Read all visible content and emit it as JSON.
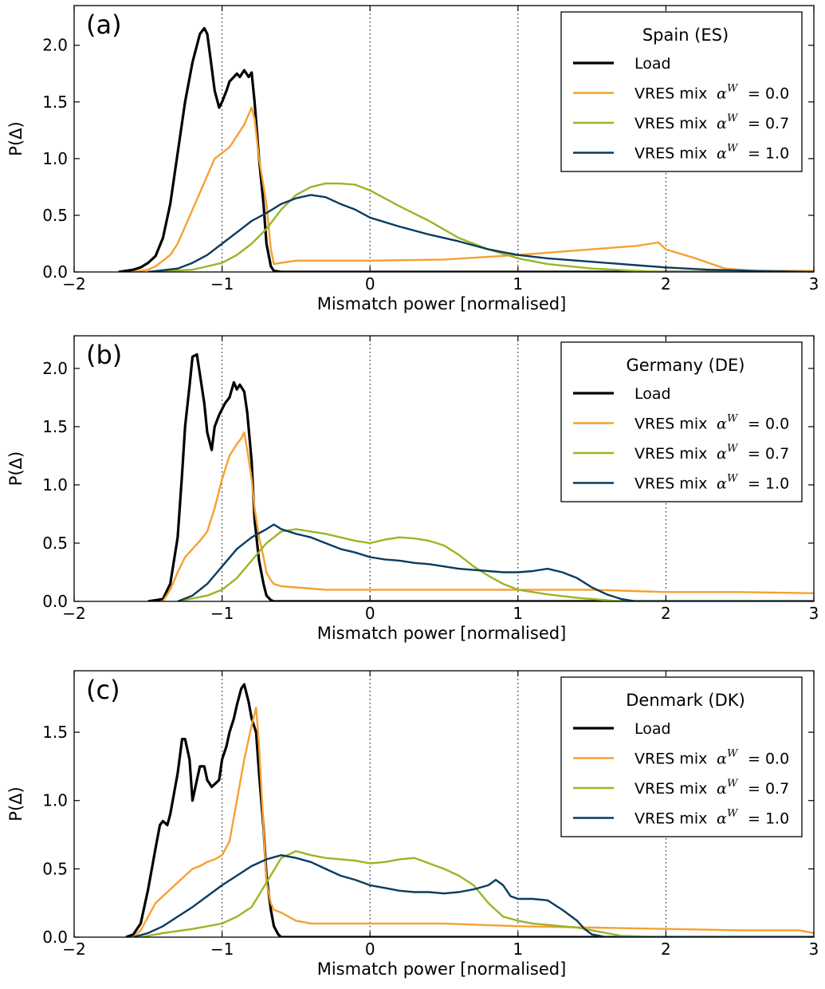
{
  "chart_data": [
    {
      "type": "line",
      "panel_label": "(a)",
      "legend_title": "Spain (ES)",
      "xlabel": "Mismatch power [normalised]",
      "ylabel": "P(Δ)",
      "xlim": [
        -2,
        3
      ],
      "ylim": [
        0,
        2.35
      ],
      "xticks": [
        -2,
        -1,
        0,
        1,
        2,
        3
      ],
      "xtick_labels": [
        "−2",
        "−1",
        "0",
        "1",
        "2",
        "3"
      ],
      "yticks": [
        0,
        0.5,
        1,
        1.5,
        2
      ],
      "ytick_labels": [
        "0.0",
        "0.5",
        "1.0",
        "1.5",
        "2.0"
      ],
      "vlines": [
        -1,
        0,
        1,
        2
      ],
      "legend_position": "top-right",
      "series": [
        {
          "name": "Load",
          "legend_main": "Load",
          "legend_value": "",
          "color": "#000000",
          "x": [
            -1.7,
            -1.6,
            -1.55,
            -1.5,
            -1.45,
            -1.4,
            -1.35,
            -1.3,
            -1.25,
            -1.2,
            -1.15,
            -1.12,
            -1.1,
            -1.08,
            -1.05,
            -1.02,
            -1.0,
            -0.97,
            -0.95,
            -0.92,
            -0.9,
            -0.88,
            -0.85,
            -0.82,
            -0.8,
            -0.78,
            -0.75,
            -0.72,
            -0.7,
            -0.67,
            -0.65,
            -0.6,
            -0.5,
            3.0
          ],
          "y": [
            0,
            0.02,
            0.04,
            0.08,
            0.14,
            0.3,
            0.6,
            1.05,
            1.5,
            1.85,
            2.1,
            2.15,
            2.1,
            1.9,
            1.6,
            1.45,
            1.5,
            1.6,
            1.68,
            1.72,
            1.75,
            1.72,
            1.78,
            1.72,
            1.76,
            1.5,
            1.0,
            0.6,
            0.25,
            0.05,
            0.01,
            0,
            0,
            0
          ]
        },
        {
          "name": "VRES mix αW = 0.0",
          "legend_main": "VRES mix",
          "legend_value": "= 0.0",
          "color": "#f7a030",
          "x": [
            -1.6,
            -1.5,
            -1.45,
            -1.4,
            -1.35,
            -1.3,
            -1.25,
            -1.2,
            -1.15,
            -1.1,
            -1.05,
            -1.0,
            -0.95,
            -0.9,
            -0.85,
            -0.8,
            -0.78,
            -0.75,
            -0.7,
            -0.67,
            -0.65,
            -0.6,
            -0.5,
            -0.3,
            0,
            0.5,
            1.0,
            1.5,
            1.8,
            1.95,
            2.0,
            2.2,
            2.4,
            2.6,
            2.8,
            3.0
          ],
          "y": [
            0,
            0.02,
            0.05,
            0.1,
            0.15,
            0.25,
            0.4,
            0.55,
            0.7,
            0.85,
            1.0,
            1.05,
            1.1,
            1.2,
            1.3,
            1.45,
            1.35,
            1.0,
            0.6,
            0.2,
            0.07,
            0.08,
            0.1,
            0.1,
            0.1,
            0.11,
            0.15,
            0.2,
            0.23,
            0.26,
            0.2,
            0.12,
            0.03,
            0.01,
            0.01,
            0.01
          ]
        },
        {
          "name": "VRES mix αW = 0.7",
          "legend_main": "VRES mix",
          "legend_value": "= 0.7",
          "color": "#9bb526",
          "x": [
            -1.5,
            -1.2,
            -1.0,
            -0.9,
            -0.8,
            -0.7,
            -0.6,
            -0.5,
            -0.4,
            -0.3,
            -0.2,
            -0.1,
            0,
            0.2,
            0.4,
            0.6,
            0.8,
            1.0,
            1.2,
            1.5,
            1.8,
            2.0,
            2.5,
            3.0
          ],
          "y": [
            0,
            0.02,
            0.08,
            0.15,
            0.25,
            0.38,
            0.55,
            0.68,
            0.75,
            0.78,
            0.78,
            0.77,
            0.72,
            0.58,
            0.45,
            0.3,
            0.2,
            0.12,
            0.07,
            0.03,
            0.01,
            0,
            0,
            0
          ]
        },
        {
          "name": "VRES mix αW = 1.0",
          "legend_main": "VRES mix",
          "legend_value": "= 1.0",
          "color": "#0c3b5e",
          "x": [
            -1.5,
            -1.3,
            -1.2,
            -1.1,
            -1.0,
            -0.9,
            -0.8,
            -0.7,
            -0.6,
            -0.5,
            -0.4,
            -0.3,
            -0.2,
            -0.1,
            0,
            0.2,
            0.4,
            0.6,
            0.8,
            1.0,
            1.2,
            1.5,
            1.8,
            2.0,
            2.3,
            2.6,
            3.0
          ],
          "y": [
            0,
            0.03,
            0.08,
            0.15,
            0.25,
            0.35,
            0.45,
            0.52,
            0.6,
            0.65,
            0.68,
            0.66,
            0.6,
            0.55,
            0.48,
            0.4,
            0.33,
            0.27,
            0.2,
            0.15,
            0.12,
            0.09,
            0.06,
            0.04,
            0.02,
            0.01,
            0
          ]
        }
      ]
    },
    {
      "type": "line",
      "panel_label": "(b)",
      "legend_title": "Germany (DE)",
      "xlabel": "Mismatch power [normalised]",
      "ylabel": "P(Δ)",
      "xlim": [
        -2,
        3
      ],
      "ylim": [
        0,
        2.28
      ],
      "xticks": [
        -2,
        -1,
        0,
        1,
        2,
        3
      ],
      "xtick_labels": [
        "−2",
        "−1",
        "0",
        "1",
        "2",
        "3"
      ],
      "yticks": [
        0,
        0.5,
        1,
        1.5,
        2
      ],
      "ytick_labels": [
        "0.0",
        "0.5",
        "1.0",
        "1.5",
        "2.0"
      ],
      "vlines": [
        -1,
        0,
        1,
        2
      ],
      "legend_position": "top-right",
      "series": [
        {
          "name": "Load",
          "legend_main": "Load",
          "legend_value": "",
          "color": "#000000",
          "x": [
            -1.5,
            -1.4,
            -1.35,
            -1.3,
            -1.27,
            -1.25,
            -1.22,
            -1.2,
            -1.17,
            -1.15,
            -1.12,
            -1.1,
            -1.07,
            -1.05,
            -1.02,
            -1.0,
            -0.98,
            -0.95,
            -0.92,
            -0.9,
            -0.88,
            -0.85,
            -0.83,
            -0.8,
            -0.78,
            -0.75,
            -0.72,
            -0.7,
            -0.67,
            -0.65,
            -0.6,
            3.0
          ],
          "y": [
            0,
            0.02,
            0.15,
            0.55,
            1.1,
            1.5,
            1.85,
            2.1,
            2.12,
            1.95,
            1.7,
            1.45,
            1.3,
            1.5,
            1.6,
            1.65,
            1.7,
            1.75,
            1.88,
            1.82,
            1.86,
            1.8,
            1.62,
            1.2,
            0.7,
            0.35,
            0.15,
            0.05,
            0.01,
            0,
            0,
            0
          ]
        },
        {
          "name": "VRES mix αW = 0.0",
          "legend_main": "VRES mix",
          "legend_value": "= 0.0",
          "color": "#f7a030",
          "x": [
            -1.4,
            -1.35,
            -1.3,
            -1.25,
            -1.2,
            -1.15,
            -1.1,
            -1.05,
            -1.0,
            -0.95,
            -0.9,
            -0.87,
            -0.85,
            -0.83,
            -0.8,
            -0.78,
            -0.75,
            -0.72,
            -0.7,
            -0.67,
            -0.65,
            -0.6,
            -0.5,
            -0.3,
            0,
            0.5,
            1.0,
            1.5,
            2.0,
            2.5,
            3.0
          ],
          "y": [
            0,
            0.1,
            0.25,
            0.38,
            0.45,
            0.52,
            0.6,
            0.8,
            1.05,
            1.25,
            1.35,
            1.4,
            1.45,
            1.3,
            1.05,
            0.8,
            0.55,
            0.38,
            0.25,
            0.18,
            0.15,
            0.13,
            0.12,
            0.1,
            0.1,
            0.1,
            0.1,
            0.1,
            0.08,
            0.08,
            0.07
          ]
        },
        {
          "name": "VRES mix αW = 0.7",
          "legend_main": "VRES mix",
          "legend_value": "= 0.7",
          "color": "#9bb526",
          "x": [
            -1.3,
            -1.1,
            -1.0,
            -0.9,
            -0.8,
            -0.7,
            -0.6,
            -0.5,
            -0.4,
            -0.3,
            -0.2,
            -0.1,
            0,
            0.1,
            0.2,
            0.3,
            0.4,
            0.5,
            0.6,
            0.7,
            0.8,
            0.9,
            1.0,
            1.2,
            1.4,
            1.6,
            1.7,
            1.8,
            2.0,
            3.0
          ],
          "y": [
            0,
            0.05,
            0.1,
            0.2,
            0.35,
            0.5,
            0.6,
            0.62,
            0.6,
            0.58,
            0.55,
            0.52,
            0.5,
            0.53,
            0.55,
            0.54,
            0.52,
            0.48,
            0.4,
            0.3,
            0.22,
            0.15,
            0.1,
            0.06,
            0.03,
            0.01,
            0,
            0,
            0,
            0
          ]
        },
        {
          "name": "VRES mix αW = 1.0",
          "legend_main": "VRES mix",
          "legend_value": "= 1.0",
          "color": "#0c3b5e",
          "x": [
            -1.3,
            -1.2,
            -1.1,
            -1.0,
            -0.9,
            -0.8,
            -0.7,
            -0.65,
            -0.6,
            -0.5,
            -0.4,
            -0.3,
            -0.2,
            -0.1,
            0,
            0.1,
            0.2,
            0.3,
            0.4,
            0.5,
            0.6,
            0.7,
            0.8,
            0.9,
            1.0,
            1.1,
            1.2,
            1.3,
            1.4,
            1.5,
            1.6,
            1.7,
            1.75,
            1.8,
            2.0,
            3.0
          ],
          "y": [
            0,
            0.05,
            0.15,
            0.3,
            0.45,
            0.55,
            0.62,
            0.66,
            0.62,
            0.58,
            0.55,
            0.5,
            0.45,
            0.42,
            0.38,
            0.36,
            0.35,
            0.33,
            0.32,
            0.3,
            0.28,
            0.27,
            0.26,
            0.25,
            0.25,
            0.26,
            0.28,
            0.25,
            0.2,
            0.12,
            0.06,
            0.02,
            0.01,
            0,
            0,
            0
          ]
        }
      ]
    },
    {
      "type": "line",
      "panel_label": "(c)",
      "legend_title": "Denmark (DK)",
      "xlabel": "Mismatch power [normalised]",
      "ylabel": "P(Δ)",
      "xlim": [
        -2,
        3
      ],
      "ylim": [
        0,
        1.95
      ],
      "xticks": [
        -2,
        -1,
        0,
        1,
        2,
        3
      ],
      "xtick_labels": [
        "−2",
        "−1",
        "0",
        "1",
        "2",
        "3"
      ],
      "yticks": [
        0,
        0.5,
        1,
        1.5
      ],
      "ytick_labels": [
        "0.0",
        "0.5",
        "1.0",
        "1.5"
      ],
      "vlines": [
        -1,
        0,
        1,
        2
      ],
      "legend_position": "top-right",
      "series": [
        {
          "name": "Load",
          "legend_main": "Load",
          "legend_value": "",
          "color": "#000000",
          "x": [
            -1.65,
            -1.6,
            -1.55,
            -1.5,
            -1.45,
            -1.42,
            -1.4,
            -1.37,
            -1.35,
            -1.3,
            -1.27,
            -1.25,
            -1.22,
            -1.2,
            -1.17,
            -1.15,
            -1.12,
            -1.1,
            -1.07,
            -1.05,
            -1.02,
            -1.0,
            -0.97,
            -0.95,
            -0.92,
            -0.9,
            -0.87,
            -0.85,
            -0.82,
            -0.8,
            -0.77,
            -0.75,
            -0.72,
            -0.7,
            -0.67,
            -0.65,
            -0.62,
            -0.6,
            -0.55,
            3.0
          ],
          "y": [
            0,
            0.02,
            0.1,
            0.35,
            0.65,
            0.82,
            0.85,
            0.82,
            0.9,
            1.2,
            1.45,
            1.45,
            1.3,
            1.0,
            1.15,
            1.25,
            1.25,
            1.15,
            1.1,
            1.12,
            1.15,
            1.3,
            1.4,
            1.5,
            1.6,
            1.7,
            1.82,
            1.85,
            1.72,
            1.6,
            1.5,
            1.2,
            0.8,
            0.45,
            0.2,
            0.08,
            0.02,
            0,
            0,
            0
          ]
        },
        {
          "name": "VRES mix αW = 0.0",
          "legend_main": "VRES mix",
          "legend_value": "= 0.0",
          "color": "#f7a030",
          "x": [
            -1.6,
            -1.55,
            -1.5,
            -1.45,
            -1.4,
            -1.35,
            -1.3,
            -1.25,
            -1.2,
            -1.15,
            -1.1,
            -1.05,
            -1.0,
            -0.95,
            -0.9,
            -0.85,
            -0.8,
            -0.77,
            -0.75,
            -0.72,
            -0.7,
            -0.67,
            -0.65,
            -0.6,
            -0.55,
            -0.5,
            -0.4,
            -0.2,
            0,
            0.5,
            1.0,
            1.5,
            2.0,
            2.5,
            2.9,
            3.0
          ],
          "y": [
            0,
            0.05,
            0.15,
            0.25,
            0.3,
            0.35,
            0.4,
            0.45,
            0.5,
            0.52,
            0.55,
            0.57,
            0.6,
            0.7,
            1.0,
            1.3,
            1.55,
            1.68,
            1.4,
            0.8,
            0.4,
            0.25,
            0.2,
            0.18,
            0.15,
            0.12,
            0.1,
            0.1,
            0.1,
            0.1,
            0.08,
            0.07,
            0.06,
            0.05,
            0.05,
            0.03
          ]
        },
        {
          "name": "VRES mix αW = 0.7",
          "legend_main": "VRES mix",
          "legend_value": "= 0.7",
          "color": "#9bb526",
          "x": [
            -1.55,
            -1.4,
            -1.2,
            -1.0,
            -0.9,
            -0.8,
            -0.7,
            -0.6,
            -0.5,
            -0.4,
            -0.3,
            -0.2,
            -0.1,
            0,
            0.1,
            0.2,
            0.3,
            0.4,
            0.5,
            0.6,
            0.7,
            0.8,
            0.9,
            1.0,
            1.1,
            1.2,
            1.3,
            1.4,
            1.5,
            1.6,
            1.7,
            2.0,
            3.0
          ],
          "y": [
            0,
            0.03,
            0.06,
            0.1,
            0.15,
            0.22,
            0.4,
            0.58,
            0.63,
            0.6,
            0.58,
            0.57,
            0.56,
            0.54,
            0.55,
            0.57,
            0.58,
            0.54,
            0.5,
            0.45,
            0.38,
            0.25,
            0.15,
            0.12,
            0.1,
            0.09,
            0.08,
            0.07,
            0.05,
            0.03,
            0.01,
            0,
            0
          ]
        },
        {
          "name": "VRES mix αW = 1.0",
          "legend_main": "VRES mix",
          "legend_value": "= 1.0",
          "color": "#0c3b5e",
          "x": [
            -1.6,
            -1.5,
            -1.4,
            -1.3,
            -1.2,
            -1.1,
            -1.0,
            -0.9,
            -0.8,
            -0.7,
            -0.6,
            -0.5,
            -0.4,
            -0.3,
            -0.2,
            -0.1,
            0,
            0.1,
            0.2,
            0.3,
            0.4,
            0.5,
            0.6,
            0.7,
            0.8,
            0.85,
            0.9,
            0.95,
            1.0,
            1.1,
            1.2,
            1.3,
            1.4,
            1.45,
            1.5,
            1.55,
            1.6,
            1.7,
            3.0
          ],
          "y": [
            0,
            0.03,
            0.08,
            0.15,
            0.22,
            0.3,
            0.38,
            0.45,
            0.52,
            0.57,
            0.6,
            0.58,
            0.55,
            0.5,
            0.45,
            0.42,
            0.38,
            0.36,
            0.34,
            0.33,
            0.33,
            0.32,
            0.33,
            0.35,
            0.38,
            0.42,
            0.38,
            0.3,
            0.28,
            0.28,
            0.27,
            0.2,
            0.12,
            0.06,
            0.02,
            0.01,
            0,
            0,
            0
          ]
        }
      ]
    }
  ]
}
